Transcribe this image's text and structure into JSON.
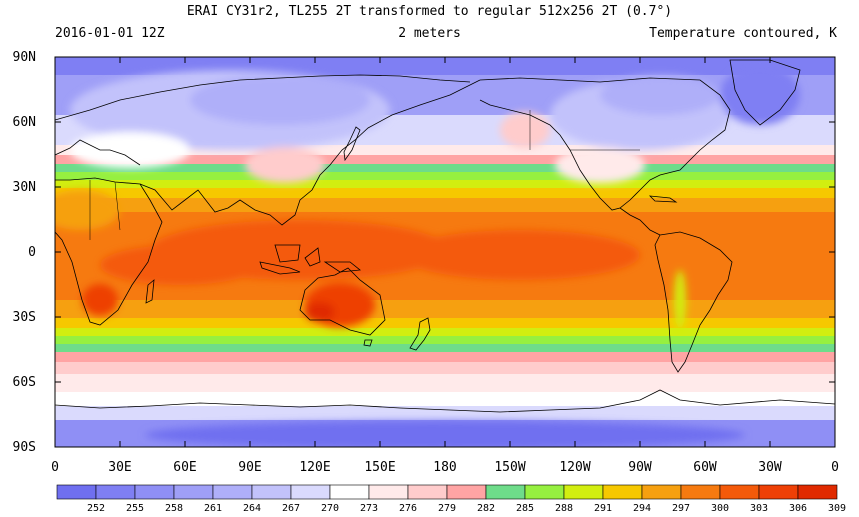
{
  "header": {
    "title": "ERAI CY31r2, TL255 2T transformed to regular 512x256 2T (0.7°)",
    "date": "2016-01-01 12Z",
    "level": "2 meters",
    "field": "Temperature contoured, K"
  },
  "map": {
    "projection": "cylindrical equidistant",
    "lon_range": [
      0,
      360
    ],
    "lat_range": [
      -90,
      90
    ],
    "lat_labels": [
      "90N",
      "60N",
      "30N",
      "0",
      "30S",
      "60S",
      "90S"
    ],
    "lon_labels": [
      "0",
      "30E",
      "60E",
      "90E",
      "120E",
      "150E",
      "180",
      "150W",
      "120W",
      "90W",
      "60W",
      "30W",
      "0"
    ],
    "coastlines": "continent outlines"
  },
  "colorbar": {
    "colors": [
      "#6f6ff0",
      "#7f7ff3",
      "#8f8ff5",
      "#9f9ff7",
      "#afaff9",
      "#c2c2fb",
      "#dadafd",
      "#ffffff",
      "#ffeaea",
      "#ffcccc",
      "#ffa4a4",
      "#6edc8a",
      "#96f040",
      "#d2ee10",
      "#f6c800",
      "#f6a010",
      "#f67a10",
      "#f45a0a",
      "#ee4006",
      "#e02a00"
    ],
    "labels": [
      "252",
      "255",
      "258",
      "261",
      "264",
      "267",
      "270",
      "273",
      "276",
      "279",
      "282",
      "285",
      "288",
      "291",
      "294",
      "297",
      "300",
      "303",
      "306",
      "309"
    ]
  }
}
